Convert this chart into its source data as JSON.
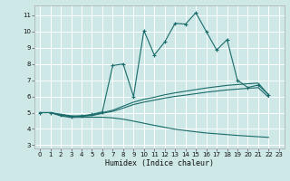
{
  "xlabel": "Humidex (Indice chaleur)",
  "xlim": [
    -0.5,
    23.5
  ],
  "ylim": [
    2.8,
    11.6
  ],
  "yticks": [
    3,
    4,
    5,
    6,
    7,
    8,
    9,
    10,
    11
  ],
  "xticks": [
    0,
    1,
    2,
    3,
    4,
    5,
    6,
    7,
    8,
    9,
    10,
    11,
    12,
    13,
    14,
    15,
    16,
    17,
    18,
    19,
    20,
    21,
    22,
    23
  ],
  "background_color": "#cde8e6",
  "grid_color": "#ffffff",
  "line_color": "#1a6b6b",
  "lines": [
    {
      "x": [
        0,
        1,
        2,
        3,
        4,
        5,
        6,
        7,
        8,
        9,
        10,
        11,
        12,
        13,
        14,
        15,
        16,
        17,
        18,
        19,
        20,
        21,
        22
      ],
      "y": [
        5.0,
        5.0,
        4.85,
        4.75,
        4.8,
        4.9,
        5.05,
        7.9,
        8.0,
        6.0,
        10.05,
        8.55,
        9.35,
        10.5,
        10.45,
        11.15,
        10.0,
        8.85,
        9.5,
        7.0,
        6.55,
        6.7,
        6.1
      ],
      "marker": true
    },
    {
      "x": [
        0,
        1,
        2,
        3,
        4,
        5,
        6,
        7,
        8,
        9,
        10,
        11,
        12,
        13,
        14,
        15,
        16,
        17,
        18,
        19,
        20,
        21,
        22
      ],
      "y": [
        5.0,
        5.0,
        4.9,
        4.8,
        4.8,
        4.85,
        5.0,
        5.15,
        5.4,
        5.65,
        5.82,
        5.95,
        6.1,
        6.22,
        6.32,
        6.42,
        6.52,
        6.6,
        6.68,
        6.73,
        6.78,
        6.82,
        6.1
      ],
      "marker": false
    },
    {
      "x": [
        0,
        1,
        2,
        3,
        4,
        5,
        6,
        7,
        8,
        9,
        10,
        11,
        12,
        13,
        14,
        15,
        16,
        17,
        18,
        19,
        20,
        21,
        22
      ],
      "y": [
        5.0,
        5.0,
        4.88,
        4.78,
        4.78,
        4.82,
        4.96,
        5.08,
        5.28,
        5.5,
        5.65,
        5.77,
        5.9,
        6.0,
        6.08,
        6.17,
        6.26,
        6.33,
        6.4,
        6.45,
        6.5,
        6.54,
        5.95
      ],
      "marker": false
    },
    {
      "x": [
        0,
        1,
        2,
        3,
        4,
        5,
        6,
        7,
        8,
        9,
        10,
        11,
        12,
        13,
        14,
        15,
        16,
        17,
        18,
        19,
        20,
        21,
        22
      ],
      "y": [
        5.0,
        5.0,
        4.8,
        4.7,
        4.72,
        4.72,
        4.72,
        4.68,
        4.6,
        4.48,
        4.35,
        4.22,
        4.1,
        3.98,
        3.9,
        3.82,
        3.75,
        3.7,
        3.65,
        3.6,
        3.56,
        3.52,
        3.48
      ],
      "marker": false
    }
  ]
}
